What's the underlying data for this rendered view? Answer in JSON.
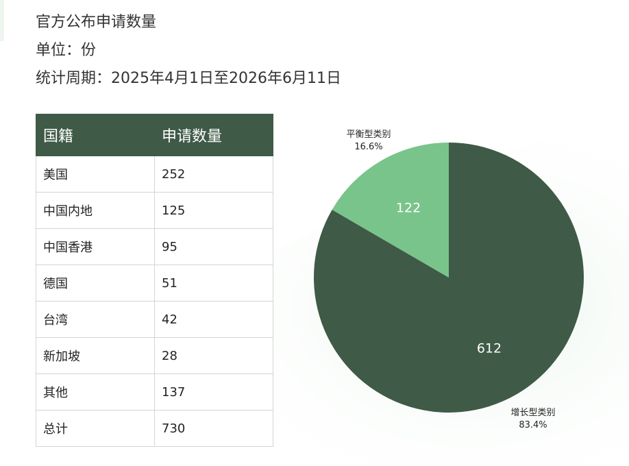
{
  "header": {
    "title": "官方公布申请数量",
    "unit": "单位：份",
    "period": "统计周期：2025年4月1日至2026年6月11日"
  },
  "table": {
    "columns": [
      "国籍",
      "申请数量"
    ],
    "rows": [
      [
        "美国",
        "252"
      ],
      [
        "中国内地",
        "125"
      ],
      [
        "中国香港",
        "95"
      ],
      [
        "德国",
        "51"
      ],
      [
        "台湾",
        "42"
      ],
      [
        "新加坡",
        "28"
      ],
      [
        "其他",
        "137"
      ],
      [
        "总计",
        "730"
      ]
    ]
  },
  "colors": {
    "header_bg": "#3f5a46",
    "growth": "#3f5a46",
    "balanced": "#79c48b"
  },
  "chart_data": {
    "type": "pie",
    "slices": [
      {
        "label": "增长型类别",
        "value": 612,
        "percent": "83.4%",
        "value_label": "612",
        "color": "#3f5a46"
      },
      {
        "label": "平衡型类别",
        "value": 122,
        "percent": "16.6%",
        "value_label": "122",
        "color": "#79c48b"
      }
    ],
    "start": "12 o'clock",
    "direction": "clockwise",
    "legend": "none"
  }
}
